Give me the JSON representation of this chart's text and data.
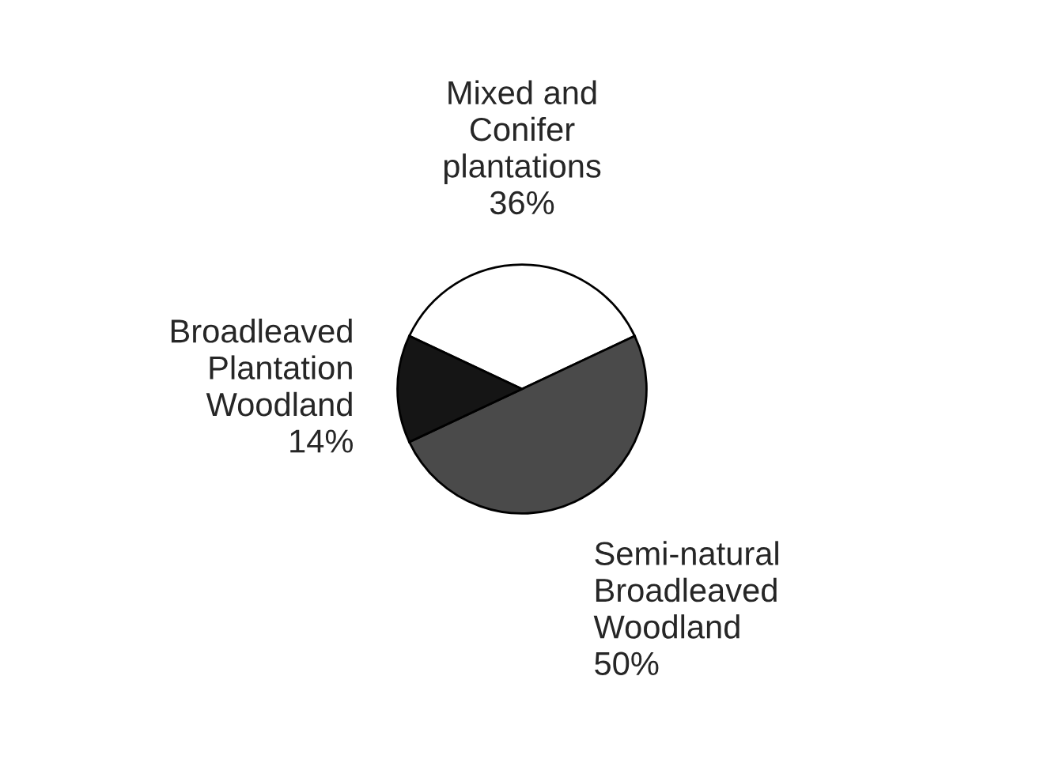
{
  "chart_data": {
    "type": "pie",
    "categories": [
      "Mixed and\nConifer\nplantations",
      "Semi-natural\nBroadleaved\nWoodland",
      "Broadleaved\nPlantation\nWoodland"
    ],
    "values": [
      36,
      50,
      14
    ],
    "value_labels": [
      "36%",
      "50%",
      "14%"
    ],
    "colors": [
      "#ffffff",
      "#4a4a4a",
      "#151515"
    ]
  }
}
